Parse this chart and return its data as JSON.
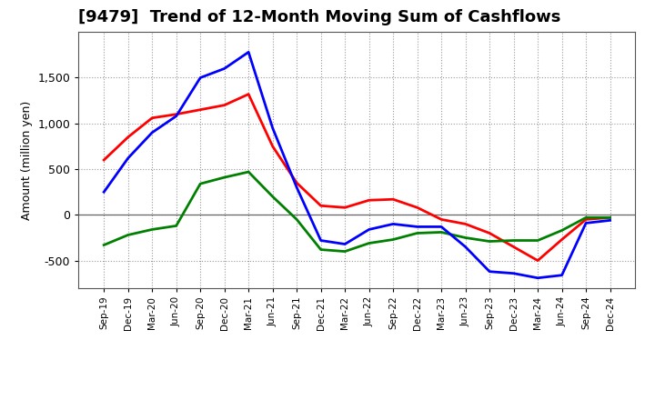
{
  "title": "[9479]  Trend of 12-Month Moving Sum of Cashflows",
  "ylabel": "Amount (million yen)",
  "x_labels": [
    "Sep-19",
    "Dec-19",
    "Mar-20",
    "Jun-20",
    "Sep-20",
    "Dec-20",
    "Mar-21",
    "Jun-21",
    "Sep-21",
    "Dec-21",
    "Mar-22",
    "Jun-22",
    "Sep-22",
    "Dec-22",
    "Mar-23",
    "Jun-23",
    "Sep-23",
    "Dec-23",
    "Mar-24",
    "Jun-24",
    "Sep-24",
    "Dec-24"
  ],
  "operating": [
    600,
    850,
    1060,
    1100,
    1150,
    1200,
    1320,
    750,
    350,
    100,
    80,
    160,
    170,
    80,
    -50,
    -100,
    -200,
    -350,
    -500,
    -270,
    -50,
    -30
  ],
  "investing": [
    -330,
    -220,
    -160,
    -120,
    340,
    410,
    470,
    200,
    -50,
    -380,
    -400,
    -310,
    -270,
    -200,
    -190,
    -250,
    -290,
    -280,
    -280,
    -170,
    -30,
    -30
  ],
  "free": [
    250,
    620,
    900,
    1080,
    1500,
    1600,
    1780,
    950,
    300,
    -280,
    -320,
    -160,
    -100,
    -130,
    -130,
    -350,
    -620,
    -640,
    -690,
    -660,
    -90,
    -60
  ],
  "operating_color": "#ff0000",
  "investing_color": "#008000",
  "free_color": "#0000ff",
  "ylim": [
    -800,
    2000
  ],
  "yticks": [
    -500,
    0,
    500,
    1000,
    1500
  ],
  "background_color": "#ffffff",
  "grid_color": "#999999",
  "linewidth": 2.0,
  "title_fontsize": 13,
  "legend_fontsize": 10
}
